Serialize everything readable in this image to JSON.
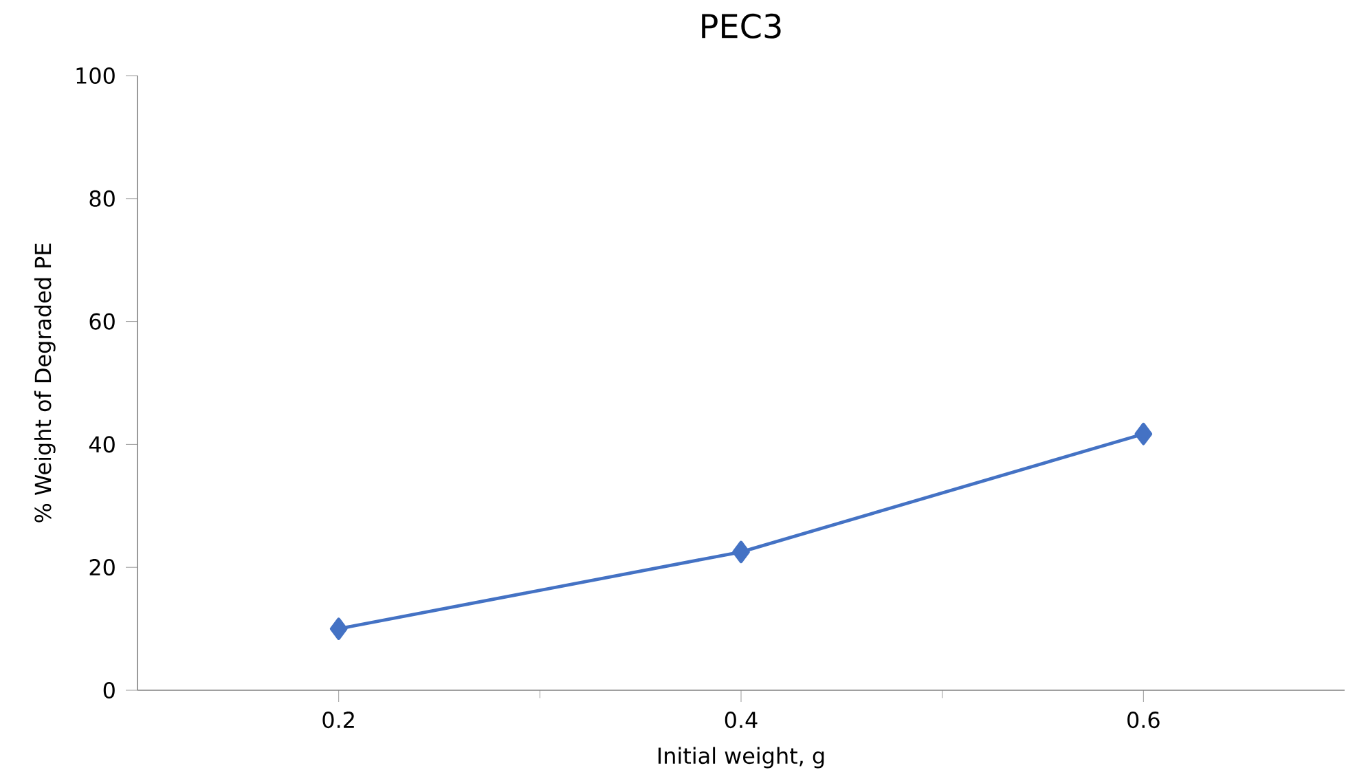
{
  "chart_data": {
    "type": "line",
    "title": "PEC3",
    "xlabel": "Initial weight, g",
    "ylabel": "% Weight of Degraded PE",
    "x": [
      0.2,
      0.4,
      0.6
    ],
    "series": [
      {
        "color": "#4472c4",
        "values": [
          10,
          22.5,
          41.7
        ]
      }
    ],
    "xlim": [
      0.1,
      0.7
    ],
    "xticks": [
      0.2,
      0.4,
      0.6
    ],
    "ylim": [
      0,
      100
    ],
    "yticks": [
      0,
      20,
      40,
      60,
      80,
      100
    ],
    "marker": "diamond",
    "line_style": "solid",
    "grid": false
  }
}
